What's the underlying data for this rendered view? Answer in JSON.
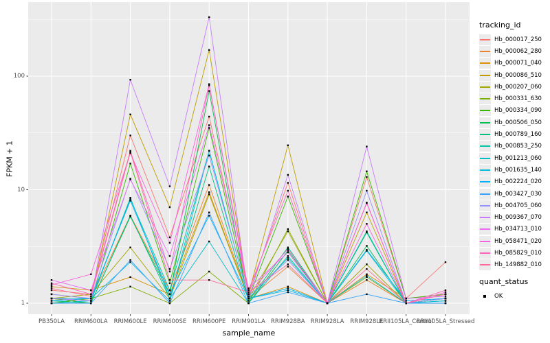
{
  "figure": {
    "background": "#FFFFFF",
    "panel_background": "#EBEBEB",
    "grid_color": "#FFFFFF",
    "tick_color": "#333333",
    "tick_label_color": "#4D4D4D",
    "point_color": "#000000"
  },
  "chart_data": {
    "type": "line",
    "title": "",
    "xlabel": "sample_name",
    "ylabel": "FPKM + 1",
    "y_scale": "log10",
    "y_ticks": [
      1,
      10,
      100
    ],
    "y_minor_ticks": [
      3.162,
      31.62,
      316.2
    ],
    "ylim": [
      0.93,
      440
    ],
    "grid": true,
    "legend_position": "right",
    "point_shape": "small-black-square",
    "categories": [
      "PB350LA",
      "RRIM600LA",
      "RRIM600LE",
      "RRIM600SE",
      "RRIM600PE",
      "RRIM901LA",
      "RRIM928BA",
      "RRIM928LA",
      "RRIM928LE",
      "RRII105LA_Control",
      "RRII105LA_Stressed"
    ],
    "series": [
      {
        "name": "Hb_000017_250",
        "color": "#F8766D",
        "values": [
          1.3,
          1.2,
          30,
          3.8,
          44,
          1.2,
          11.5,
          1,
          12.9,
          1.1,
          2.3
        ]
      },
      {
        "name": "Hb_000062_280",
        "color": "#EA8331",
        "values": [
          1.1,
          1.1,
          5.9,
          1.3,
          11,
          1.1,
          2.1,
          1,
          1.6,
          1,
          1.1
        ]
      },
      {
        "name": "Hb_000071_040",
        "color": "#D89000",
        "values": [
          1.4,
          1.3,
          1.7,
          1.2,
          9.5,
          1.1,
          1.4,
          1,
          1.8,
          1.1,
          1.2
        ]
      },
      {
        "name": "Hb_000086_510",
        "color": "#C09B00",
        "values": [
          1.2,
          1.1,
          46,
          7.0,
          170,
          1.2,
          24.6,
          1,
          6.3,
          1,
          1.1
        ]
      },
      {
        "name": "Hb_000207_060",
        "color": "#A3A500",
        "values": [
          1.1,
          1.2,
          3.1,
          1.1,
          9.1,
          1.1,
          4.3,
          1,
          2.2,
          1,
          1.1
        ]
      },
      {
        "name": "Hb_000331_630",
        "color": "#7CAE00",
        "values": [
          1.0,
          1.1,
          1.4,
          1.0,
          1.9,
          1.0,
          4.5,
          1,
          1.7,
          1,
          1.0
        ]
      },
      {
        "name": "Hb_000334_090",
        "color": "#39B600",
        "values": [
          1.1,
          1.0,
          17,
          1.5,
          35,
          1.1,
          8.7,
          1,
          14.5,
          1.1,
          1.2
        ]
      },
      {
        "name": "Hb_000506_050",
        "color": "#00BB4E",
        "values": [
          1.0,
          1.0,
          5.8,
          1.2,
          74,
          1.0,
          2.9,
          1,
          3.2,
          1,
          1.1
        ]
      },
      {
        "name": "Hb_000789_160",
        "color": "#00BF7D",
        "values": [
          1.05,
          1.0,
          5.9,
          1.1,
          16,
          1.05,
          3.1,
          1,
          4.2,
          1,
          1.05
        ]
      },
      {
        "name": "Hb_000853_250",
        "color": "#00C1A3",
        "values": [
          1.1,
          1.05,
          8.3,
          1.3,
          22,
          1.1,
          2.5,
          1,
          4.3,
          1,
          1.1
        ]
      },
      {
        "name": "Hb_001213_060",
        "color": "#00BFC4",
        "values": [
          1.0,
          1.05,
          8.5,
          1.1,
          3.5,
          1.0,
          2.6,
          1,
          2.9,
          1,
          1.0
        ]
      },
      {
        "name": "Hb_001635_140",
        "color": "#00BAE0",
        "values": [
          1.1,
          1.1,
          2.3,
          1.05,
          22,
          1.1,
          1.3,
          1,
          1.75,
          1,
          1.05
        ]
      },
      {
        "name": "Hb_002224_020",
        "color": "#00B0F6",
        "values": [
          1.05,
          1.1,
          8.0,
          1.2,
          5.9,
          1.1,
          1.35,
          1,
          2.95,
          1.05,
          1.1
        ]
      },
      {
        "name": "Hb_003427_030",
        "color": "#35A2FF",
        "values": [
          1.0,
          1.0,
          2.4,
          1.0,
          6.3,
          1.0,
          1.25,
          1,
          1.2,
          1,
          1.0
        ]
      },
      {
        "name": "Hb_004705_060",
        "color": "#9590FF",
        "values": [
          1.2,
          1.1,
          12.5,
          2.0,
          20,
          1.15,
          2.4,
          1,
          9.8,
          1,
          1.1
        ]
      },
      {
        "name": "Hb_009367_070",
        "color": "#C77CFF",
        "values": [
          1.1,
          1.05,
          93,
          10.7,
          331,
          1.1,
          13.5,
          1,
          24,
          1.1,
          1.15
        ]
      },
      {
        "name": "Hb_034713_010",
        "color": "#E76BF3",
        "values": [
          1.6,
          1.3,
          12.3,
          2.6,
          37,
          1.35,
          2.8,
          1,
          7.7,
          1,
          1.2
        ]
      },
      {
        "name": "Hb_058471_020",
        "color": "#FA62DB",
        "values": [
          1.45,
          1.8,
          21,
          3.4,
          85,
          1.2,
          3.0,
          1,
          5.0,
          1,
          1.25
        ]
      },
      {
        "name": "Hb_085829_010",
        "color": "#FF62BC",
        "values": [
          1.5,
          1.2,
          22,
          1.9,
          83,
          1.3,
          9.8,
          1,
          7.6,
          1,
          1.3
        ]
      },
      {
        "name": "Hb_149882_010",
        "color": "#FF6A98",
        "values": [
          1.35,
          1.15,
          21.5,
          1.6,
          1.6,
          1.25,
          2.2,
          1,
          2.0,
          1,
          1.2
        ]
      }
    ]
  },
  "legend": {
    "tracking_title": "tracking_id",
    "quant_title": "quant_status",
    "quant_items": [
      {
        "label": "OK"
      }
    ]
  }
}
